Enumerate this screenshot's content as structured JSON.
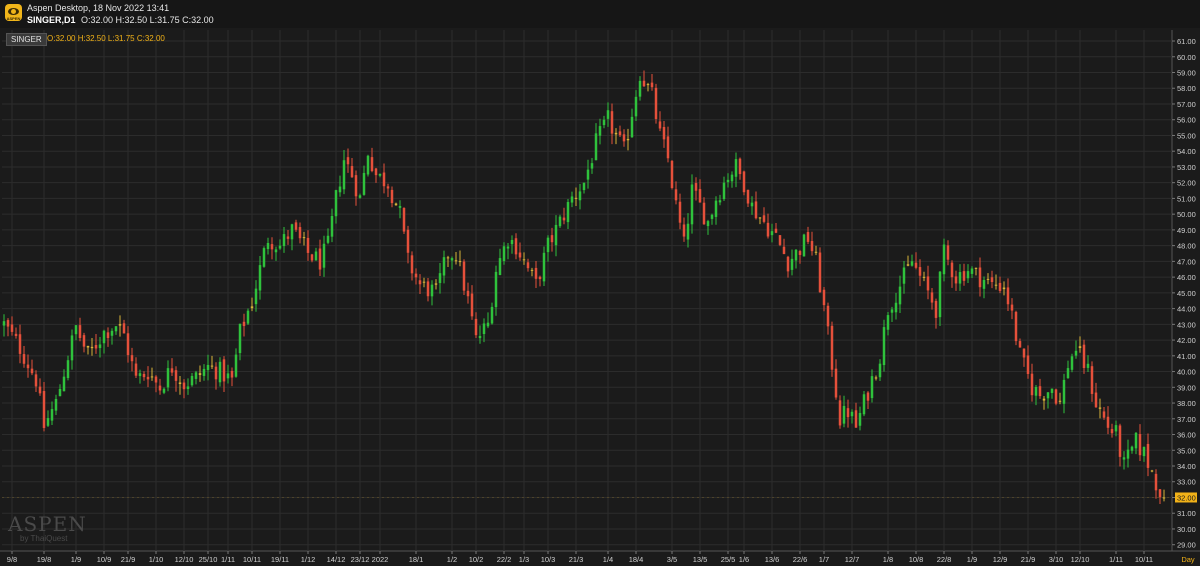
{
  "window": {
    "title": "Aspen Desktop, 18 Nov 2022 13:41",
    "symbol_timeframe": "SINGER,D1",
    "ohlc_text": "O:32.00 H:32.50 L:31.75 C:32.00",
    "logo_text": "ASPEN"
  },
  "series_tag": {
    "symbol": "SINGER",
    "ohlc_text": "O:32.00 H:32.50 L:31.75 C:32.00"
  },
  "watermark": {
    "main": "ASPEN",
    "sub": "by ThaiQuest"
  },
  "colors": {
    "up": "#2fc23c",
    "down": "#e5503b",
    "doji": "#d7b33a",
    "background": "#1b1b1b",
    "grid": "#2c2c2c",
    "accent": "#f2b218"
  },
  "chart_data": {
    "type": "candlestick",
    "timeframe_label": "Day",
    "last_price_label": "32.00",
    "last_price": 32.0,
    "ylim": [
      28.6,
      61.7
    ],
    "y_ticks": [
      "29.00",
      "30.00",
      "31.00",
      "32.00",
      "33.00",
      "34.00",
      "35.00",
      "36.00",
      "37.00",
      "38.00",
      "39.00",
      "40.00",
      "41.00",
      "42.00",
      "43.00",
      "44.00",
      "45.00",
      "46.00",
      "47.00",
      "48.00",
      "49.00",
      "50.00",
      "51.00",
      "52.00",
      "53.00",
      "54.00",
      "55.00",
      "56.00",
      "57.00",
      "58.00",
      "59.00",
      "60.00",
      "61.00"
    ],
    "x_ticks": [
      {
        "label": "9/8",
        "index": 2
      },
      {
        "label": "19/8",
        "index": 10
      },
      {
        "label": "1/9",
        "index": 18
      },
      {
        "label": "10/9",
        "index": 25
      },
      {
        "label": "21/9",
        "index": 31
      },
      {
        "label": "1/10",
        "index": 38
      },
      {
        "label": "12/10",
        "index": 45
      },
      {
        "label": "25/10",
        "index": 51
      },
      {
        "label": "1/11",
        "index": 56
      },
      {
        "label": "10/11",
        "index": 62
      },
      {
        "label": "19/11",
        "index": 69
      },
      {
        "label": "1/12",
        "index": 76
      },
      {
        "label": "14/12",
        "index": 83
      },
      {
        "label": "23/12",
        "index": 89
      },
      {
        "label": "2022",
        "index": 94
      },
      {
        "label": "18/1",
        "index": 103
      },
      {
        "label": "1/2",
        "index": 112
      },
      {
        "label": "10/2",
        "index": 118
      },
      {
        "label": "22/2",
        "index": 125
      },
      {
        "label": "1/3",
        "index": 130
      },
      {
        "label": "10/3",
        "index": 136
      },
      {
        "label": "21/3",
        "index": 143
      },
      {
        "label": "1/4",
        "index": 151
      },
      {
        "label": "18/4",
        "index": 158
      },
      {
        "label": "3/5",
        "index": 167
      },
      {
        "label": "13/5",
        "index": 174
      },
      {
        "label": "25/5",
        "index": 181
      },
      {
        "label": "1/6",
        "index": 185
      },
      {
        "label": "13/6",
        "index": 192
      },
      {
        "label": "22/6",
        "index": 199
      },
      {
        "label": "1/7",
        "index": 205
      },
      {
        "label": "12/7",
        "index": 212
      },
      {
        "label": "1/8",
        "index": 221
      },
      {
        "label": "10/8",
        "index": 228
      },
      {
        "label": "22/8",
        "index": 235
      },
      {
        "label": "1/9",
        "index": 242
      },
      {
        "label": "12/9",
        "index": 249
      },
      {
        "label": "21/9",
        "index": 256
      },
      {
        "label": "3/10",
        "index": 263
      },
      {
        "label": "12/10",
        "index": 269
      },
      {
        "label": "1/11",
        "index": 278
      },
      {
        "label": "10/11",
        "index": 285
      }
    ],
    "anchors": [
      [
        0,
        43.0
      ],
      [
        4,
        41.5
      ],
      [
        8,
        39.5
      ],
      [
        10,
        36.5
      ],
      [
        13,
        38.0
      ],
      [
        16,
        41.0
      ],
      [
        18,
        42.8
      ],
      [
        21,
        41.0
      ],
      [
        25,
        42.5
      ],
      [
        28,
        43.0
      ],
      [
        30,
        42.3
      ],
      [
        33,
        39.5
      ],
      [
        36,
        40.0
      ],
      [
        39,
        39.0
      ],
      [
        42,
        40.3
      ],
      [
        45,
        39.2
      ],
      [
        48,
        39.6
      ],
      [
        51,
        40.3
      ],
      [
        54,
        40.0
      ],
      [
        57,
        39.4
      ],
      [
        59,
        42.5
      ],
      [
        62,
        44.5
      ],
      [
        64,
        46.5
      ],
      [
        66,
        48.5
      ],
      [
        69,
        48.0
      ],
      [
        72,
        49.0
      ],
      [
        76,
        47.5
      ],
      [
        79,
        47.0
      ],
      [
        81,
        48.0
      ],
      [
        83,
        51.0
      ],
      [
        85,
        53.5
      ],
      [
        87,
        52.5
      ],
      [
        89,
        51.0
      ],
      [
        91,
        54.0
      ],
      [
        93,
        52.5
      ],
      [
        96,
        52.0
      ],
      [
        99,
        50.0
      ],
      [
        101,
        47.0
      ],
      [
        104,
        45.5
      ],
      [
        108,
        45.0
      ],
      [
        111,
        47.5
      ],
      [
        113,
        47.5
      ],
      [
        116,
        44.5
      ],
      [
        118,
        42.0
      ],
      [
        121,
        43.0
      ],
      [
        123,
        46.5
      ],
      [
        126,
        48.5
      ],
      [
        128,
        48.0
      ],
      [
        131,
        46.5
      ],
      [
        133,
        45.5
      ],
      [
        136,
        48.0
      ],
      [
        139,
        49.5
      ],
      [
        142,
        51.0
      ],
      [
        145,
        52.0
      ],
      [
        148,
        54.5
      ],
      [
        151,
        56.0
      ],
      [
        153,
        55.0
      ],
      [
        155,
        54.0
      ],
      [
        157,
        56.5
      ],
      [
        159,
        59.0
      ],
      [
        162,
        57.5
      ],
      [
        164,
        55.0
      ],
      [
        166,
        53.5
      ],
      [
        168,
        50.5
      ],
      [
        170,
        48.0
      ],
      [
        172,
        51.5
      ],
      [
        174,
        50.5
      ],
      [
        176,
        49.5
      ],
      [
        178,
        51.0
      ],
      [
        181,
        52.5
      ],
      [
        183,
        53.0
      ],
      [
        185,
        52.0
      ],
      [
        187,
        50.5
      ],
      [
        190,
        49.5
      ],
      [
        193,
        48.5
      ],
      [
        196,
        47.0
      ],
      [
        198,
        47.5
      ],
      [
        201,
        48.5
      ],
      [
        203,
        47.0
      ],
      [
        205,
        44.0
      ],
      [
        207,
        40.5
      ],
      [
        209,
        37.0
      ],
      [
        211,
        37.5
      ],
      [
        213,
        36.5
      ],
      [
        215,
        38.0
      ],
      [
        217,
        39.5
      ],
      [
        219,
        41.0
      ],
      [
        221,
        44.0
      ],
      [
        224,
        45.5
      ],
      [
        227,
        47.0
      ],
      [
        229,
        46.0
      ],
      [
        231,
        45.0
      ],
      [
        233,
        44.0
      ],
      [
        235,
        47.5
      ],
      [
        238,
        46.0
      ],
      [
        241,
        46.5
      ],
      [
        244,
        46.0
      ],
      [
        247,
        45.5
      ],
      [
        250,
        45.5
      ],
      [
        252,
        43.5
      ],
      [
        254,
        41.0
      ],
      [
        257,
        39.0
      ],
      [
        259,
        38.5
      ],
      [
        262,
        39.0
      ],
      [
        264,
        38.0
      ],
      [
        266,
        40.5
      ],
      [
        268,
        41.5
      ],
      [
        271,
        40.0
      ],
      [
        273,
        38.0
      ],
      [
        276,
        36.5
      ],
      [
        278,
        36.0
      ],
      [
        280,
        34.0
      ],
      [
        283,
        35.5
      ],
      [
        285,
        34.8
      ],
      [
        288,
        33.0
      ],
      [
        290,
        32.0
      ]
    ],
    "last_candle": {
      "open": 32.0,
      "high": 32.5,
      "low": 31.75,
      "close": 32.0
    }
  }
}
